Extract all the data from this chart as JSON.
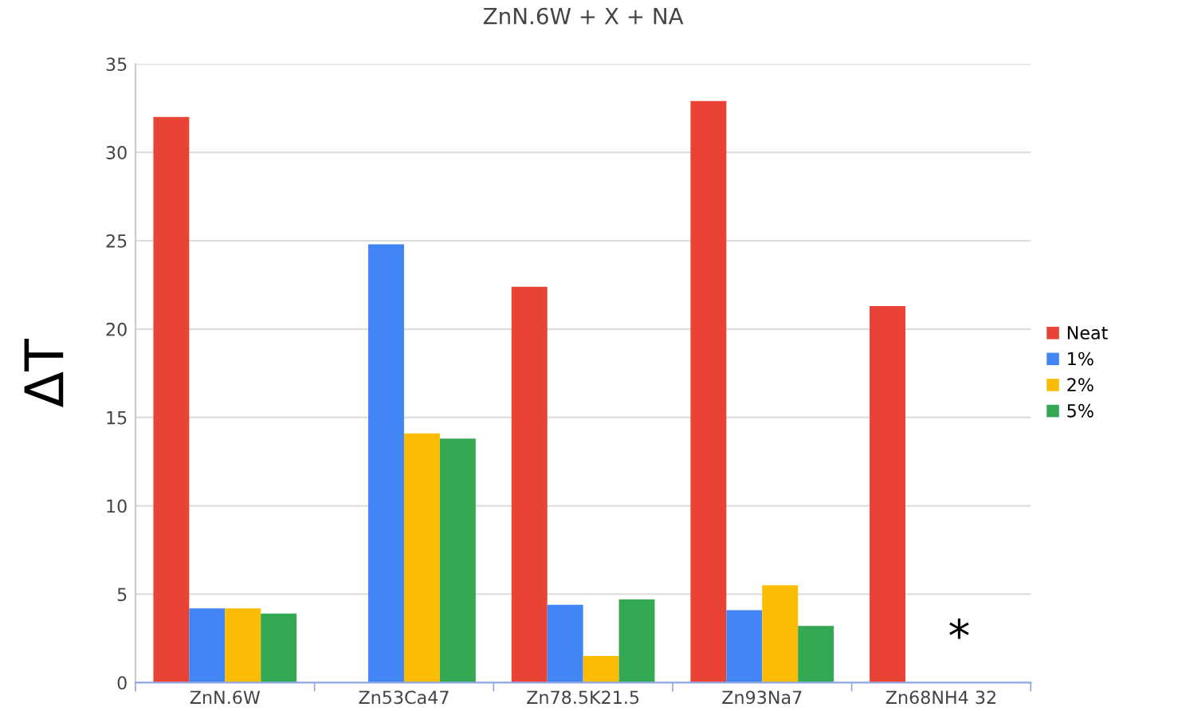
{
  "chart_data": {
    "type": "bar",
    "title": "ZnN.6W + X + NA",
    "ylabel": "ΔT",
    "categories": [
      "ZnN.6W",
      "Zn53Ca47",
      "Zn78.5K21.5",
      "Zn93Na7",
      "Zn68NH4 32"
    ],
    "series": [
      {
        "name": "Neat",
        "color": "#e94335",
        "values": [
          32.0,
          null,
          22.4,
          32.9,
          21.3
        ]
      },
      {
        "name": "1%",
        "color": "#4285f4",
        "values": [
          4.2,
          24.8,
          4.4,
          4.1,
          null
        ]
      },
      {
        "name": "2%",
        "color": "#fbbc05",
        "values": [
          4.2,
          14.1,
          1.5,
          5.5,
          null
        ]
      },
      {
        "name": "5%",
        "color": "#34a853",
        "values": [
          3.9,
          13.8,
          4.7,
          3.2,
          null
        ]
      }
    ],
    "ylim": [
      0,
      35
    ],
    "yticks": [
      0,
      5,
      10,
      15,
      20,
      25,
      30,
      35
    ],
    "grid": "y",
    "legend": "right",
    "annotations": [
      "*"
    ]
  }
}
